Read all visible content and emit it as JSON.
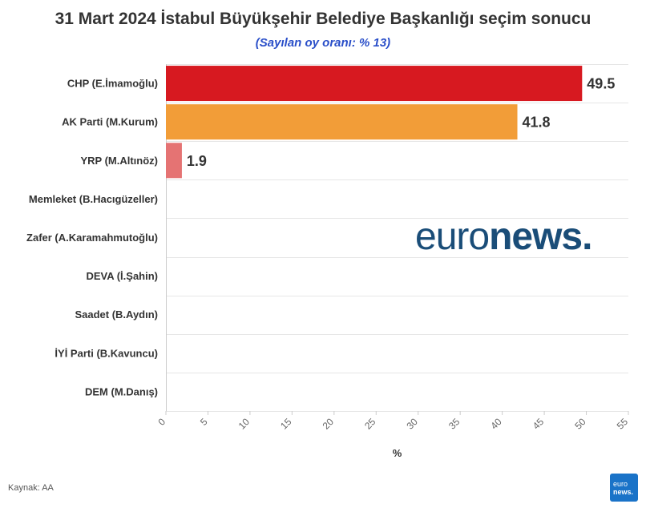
{
  "title": "31 Mart 2024 İstabul Büyükşehir Belediye Başkanlığı seçim sonucu",
  "subtitle": "(Sayılan oy oranı: % 13)",
  "source": "Kaynak: AA",
  "watermark": {
    "part1": "euro",
    "part2": "news."
  },
  "logo": {
    "line1": "euro",
    "line2": "news."
  },
  "chart_data": {
    "type": "bar",
    "orientation": "horizontal",
    "title": "31 Mart 2024 İstabul Büyükşehir Belediye Başkanlığı seçim sonucu",
    "subtitle": "(Sayılan oy oranı: % 13)",
    "xlabel": "%",
    "categories": [
      "CHP (E.İmamoğlu)",
      "AK Parti (M.Kurum)",
      "YRP (M.Altınöz)",
      "Memleket (B.Hacıgüzeller)",
      "Zafer (A.Karamahmutoğlu)",
      "DEVA (İ.Şahin)",
      "Saadet (B.Aydın)",
      "İYİ Parti (B.Kavuncu)",
      "DEM (M.Danış)"
    ],
    "values": [
      49.5,
      41.8,
      1.9,
      null,
      null,
      null,
      null,
      null,
      null
    ],
    "data_labels": [
      "49.5",
      "41.8",
      "1.9",
      "",
      "",
      "",
      "",
      "",
      ""
    ],
    "colors": [
      "#d71920",
      "#f29d38",
      "#e57373",
      "#cccccc",
      "#cccccc",
      "#cccccc",
      "#cccccc",
      "#cccccc",
      "#cccccc"
    ],
    "xlim": [
      0,
      55
    ],
    "xticks": [
      0,
      5,
      10,
      15,
      20,
      25,
      30,
      35,
      40,
      45,
      50,
      55
    ],
    "grid": true
  }
}
